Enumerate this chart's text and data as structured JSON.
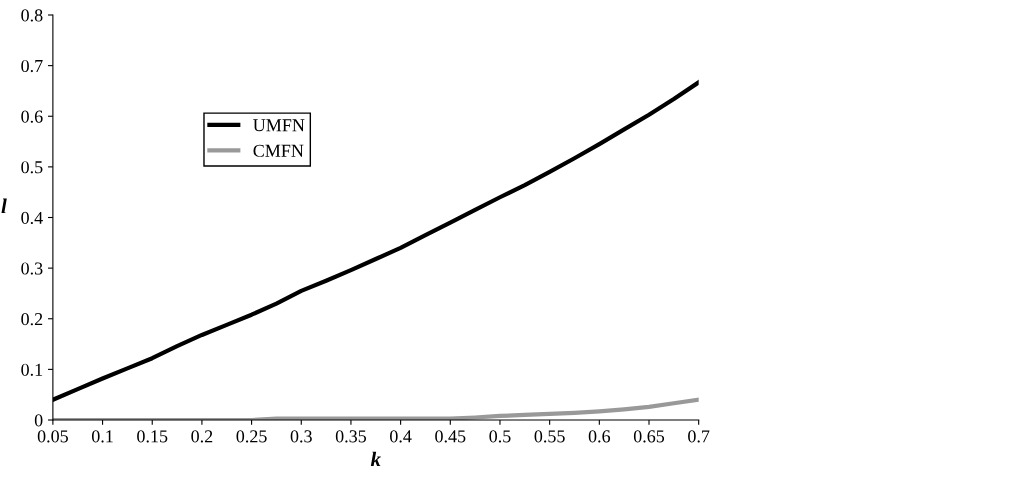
{
  "chart_data": {
    "type": "line",
    "xlabel": "k",
    "ylabel": "l",
    "xlim": [
      0.05,
      0.7
    ],
    "xticks": [
      0.05,
      0.1,
      0.15,
      0.2,
      0.25,
      0.3,
      0.35,
      0.4,
      0.45,
      0.5,
      0.55,
      0.6,
      0.65,
      0.7
    ],
    "ylim": [
      0,
      0.8
    ],
    "yticks": [
      0,
      0.1,
      0.2,
      0.3,
      0.4,
      0.5,
      0.6,
      0.7,
      0.8
    ],
    "x": [
      0.05,
      0.075,
      0.1,
      0.125,
      0.15,
      0.175,
      0.2,
      0.225,
      0.25,
      0.275,
      0.3,
      0.325,
      0.35,
      0.375,
      0.4,
      0.425,
      0.45,
      0.475,
      0.5,
      0.525,
      0.55,
      0.575,
      0.6,
      0.625,
      0.65,
      0.675,
      0.7
    ],
    "series": [
      {
        "name": "UMFN",
        "color": "#000000",
        "values": [
          0.04,
          0.061,
          0.082,
          0.102,
          0.122,
          0.146,
          0.168,
          0.188,
          0.208,
          0.23,
          0.255,
          0.275,
          0.296,
          0.318,
          0.34,
          0.365,
          0.39,
          0.415,
          0.44,
          0.464,
          0.49,
          0.517,
          0.545,
          0.574,
          0.603,
          0.634,
          0.667
        ]
      },
      {
        "name": "CMFN",
        "color": "#999999",
        "values": [
          0,
          0,
          0,
          0,
          0,
          0,
          0,
          0,
          0,
          0.003,
          0.003,
          0.003,
          0.003,
          0.003,
          0.003,
          0.003,
          0.003,
          0.005,
          0.008,
          0.01,
          0.012,
          0.014,
          0.017,
          0.021,
          0.026,
          0.033,
          0.04
        ]
      }
    ],
    "grid": false,
    "legend": "top left",
    "marker": "none",
    "line_style": "solid"
  }
}
